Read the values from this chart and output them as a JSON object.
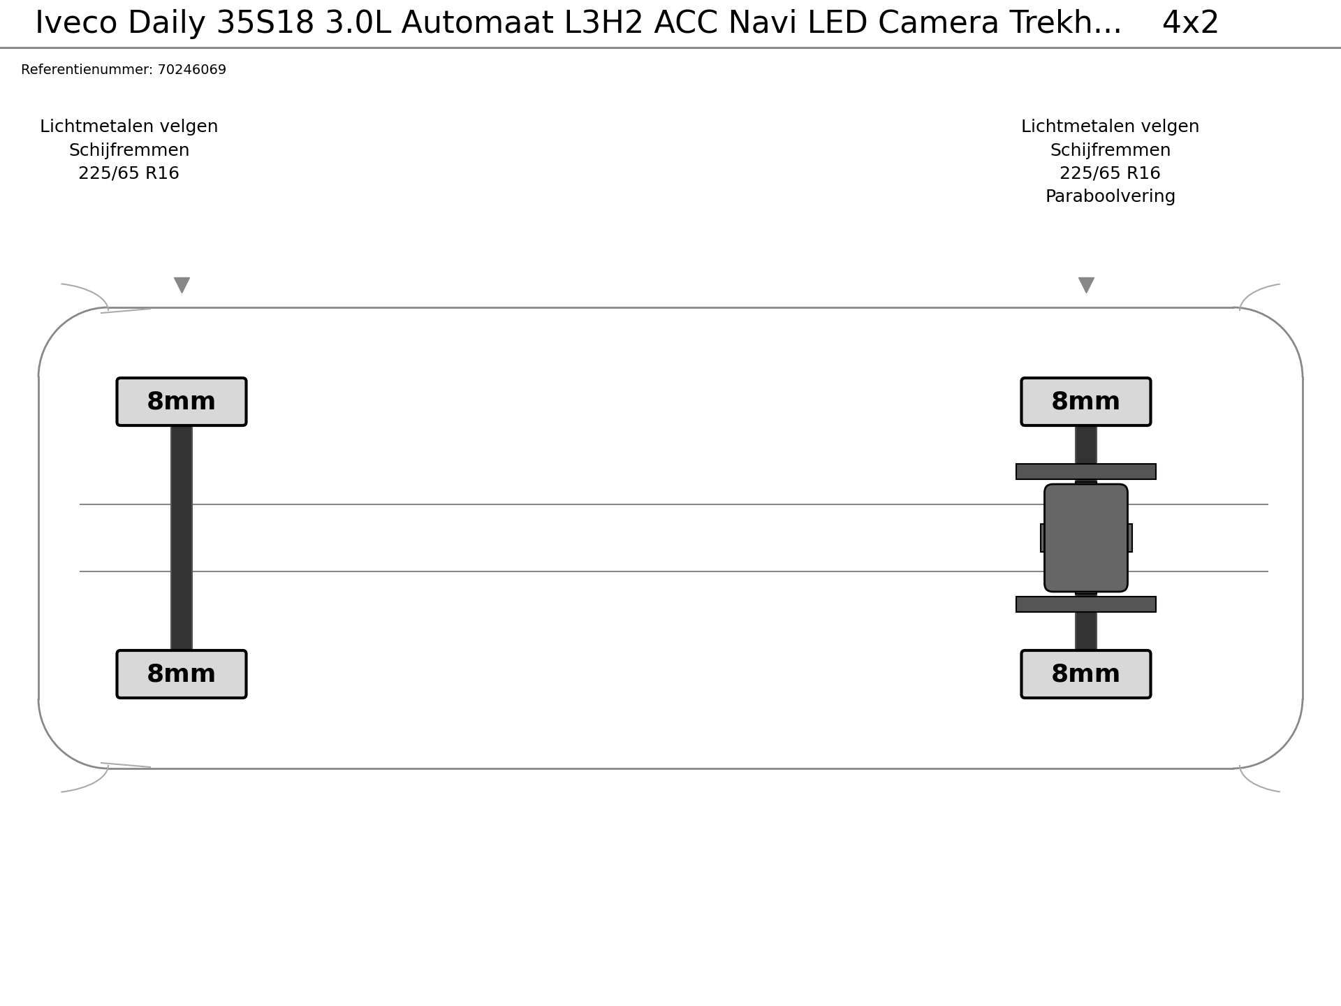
{
  "title": "Iveco Daily 35S18 3.0L Automaat L3H2 ACC Navi LED Camera Trekh...    4x2",
  "subtitle": "Referentienummer: 70246069",
  "title_fontsize": 32,
  "subtitle_fontsize": 14,
  "bg_color": "#ffffff",
  "border_color": "#000000",
  "axle_color": "#333333",
  "axle_color2": "#555555",
  "label_bg": "#d8d8d8",
  "label_border": "#000000",
  "label_text": "8mm",
  "label_fontsize": 26,
  "front_axle_label": "Lichtmetalen velgen\nSchijfremmen\n225/65 R16",
  "rear_axle_label": "Lichtmetalen velgen\nSchijfremmen\n225/65 R16\nParaboolvering",
  "annotation_fontsize": 18,
  "vehicle_outline_color": "#888888",
  "vehicle_inner_color": "#aaaaaa",
  "suspension_bar_color": "#555555",
  "diff_color": "#666666",
  "title_separator_color": "#888888",
  "header_bg": "#ffffff",
  "triangle_color": "#888888"
}
